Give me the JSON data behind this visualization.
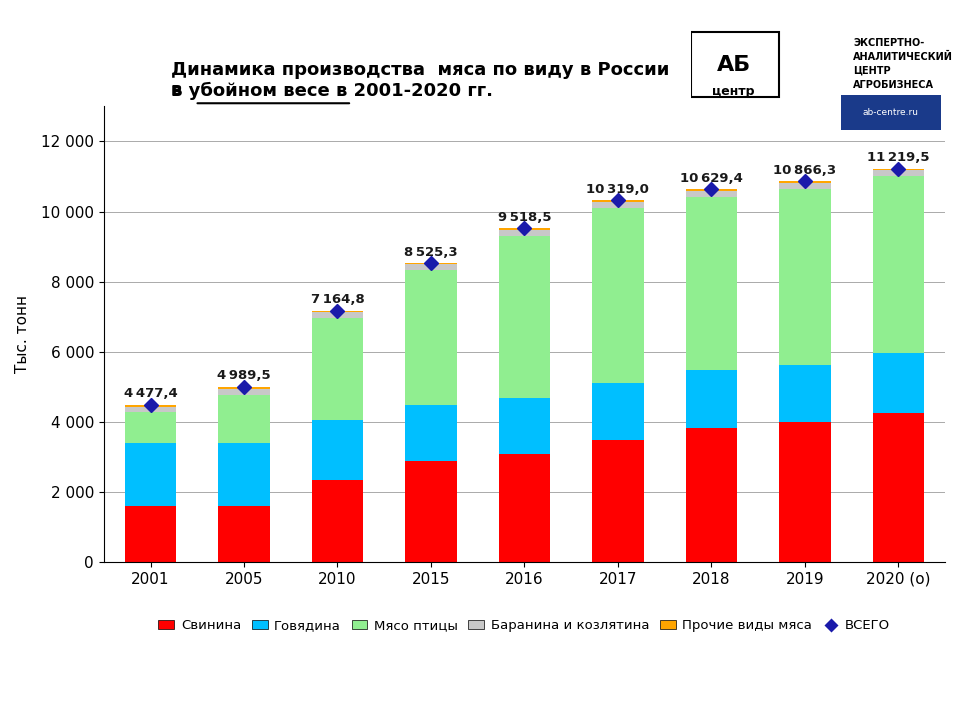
{
  "years": [
    "2001",
    "2005",
    "2010",
    "2015",
    "2016",
    "2017",
    "2018",
    "2019",
    "2020 (о)"
  ],
  "totals": [
    4477.4,
    4989.5,
    7164.8,
    8525.3,
    9518.5,
    10319.0,
    10629.4,
    10866.3,
    11219.5
  ],
  "svinina": [
    1600,
    1600,
    2330,
    2870,
    3070,
    3490,
    3820,
    3980,
    4260
  ],
  "govyadina": [
    1800,
    1800,
    1720,
    1600,
    1600,
    1620,
    1650,
    1640,
    1700
  ],
  "myaso_ptitsy": [
    870,
    1350,
    2920,
    3850,
    4640,
    5000,
    4950,
    5020,
    5040
  ],
  "baranina": [
    160,
    175,
    175,
    175,
    175,
    175,
    180,
    185,
    185
  ],
  "prochie": [
    47,
    64.5,
    19.8,
    30.3,
    33.5,
    34.0,
    29.4,
    41.3,
    34.5
  ],
  "colors": {
    "svinina": "#FF0000",
    "govyadina": "#00BFFF",
    "myaso_ptitsy": "#90EE90",
    "baranina": "#C8C8C8",
    "prochie": "#FFA500"
  },
  "total_color": "#1a1aaa",
  "title_line1": "Динамика производства  мяса по виду в России",
  "title_line2_plain": "в ",
  "title_line2_underline": "убойном весе",
  "title_line2_rest": " в 2001-2020 гг.",
  "ylabel": "Тыс. тонн",
  "ylim": [
    0,
    13000
  ],
  "yticks": [
    0,
    2000,
    4000,
    6000,
    8000,
    10000,
    12000
  ],
  "legend_labels": [
    "Свинина",
    "Говядина",
    "Мясо птицы",
    "Баранина и козлятина",
    "Прочие виды мяса",
    "ВСЕГО"
  ],
  "background_color": "#FFFFFF",
  "grid_color": "#AAAAAA"
}
